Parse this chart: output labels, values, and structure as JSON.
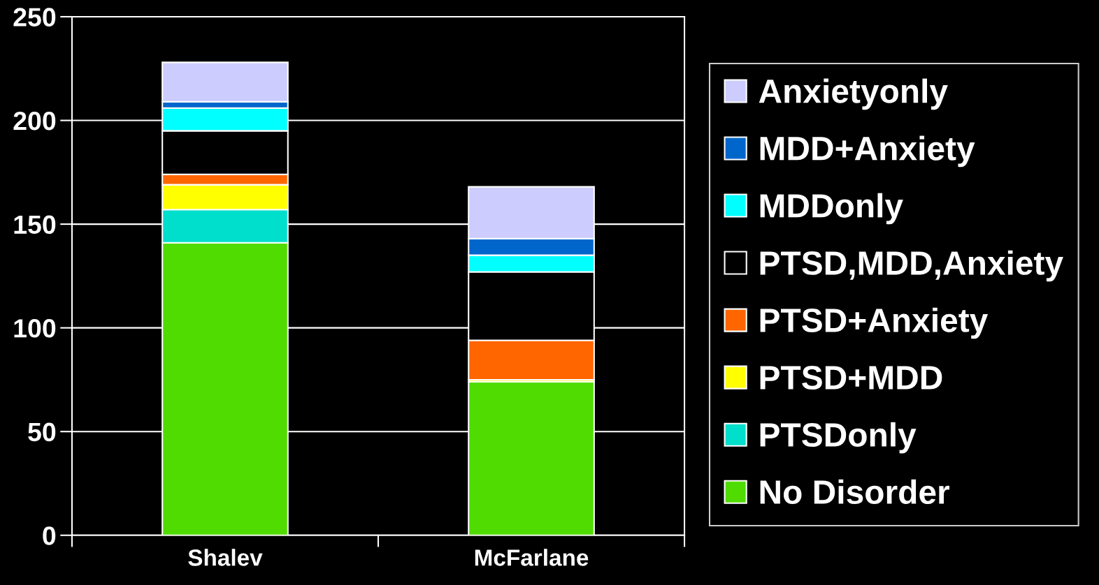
{
  "chart_data": {
    "type": "bar",
    "stacked": true,
    "categories": [
      "Shalev",
      "McFarlane"
    ],
    "series": [
      {
        "name": "No Disorder",
        "color": "#50dc00",
        "values": [
          141,
          74
        ]
      },
      {
        "name": "PTSDonly",
        "color": "#00dfcc",
        "values": [
          16,
          0
        ]
      },
      {
        "name": "PTSD+MDD",
        "color": "#ffff00",
        "values": [
          12,
          1
        ]
      },
      {
        "name": "PTSD+Anxiety",
        "color": "#ff6600",
        "values": [
          5,
          19
        ]
      },
      {
        "name": "PTSD,MDD,Anxiety",
        "color": "#000000",
        "values": [
          21,
          33
        ]
      },
      {
        "name": "MDDonly",
        "color": "#00ffff",
        "values": [
          11,
          8
        ]
      },
      {
        "name": "MDD+Anxiety",
        "color": "#0066cc",
        "values": [
          3,
          8
        ]
      },
      {
        "name": "Anxietyonly",
        "color": "#ccccff",
        "values": [
          19,
          25
        ]
      }
    ],
    "ylim": [
      0,
      250
    ],
    "yticks": [
      0,
      50,
      100,
      150,
      200,
      250
    ],
    "grid": "y",
    "legend": "right"
  }
}
